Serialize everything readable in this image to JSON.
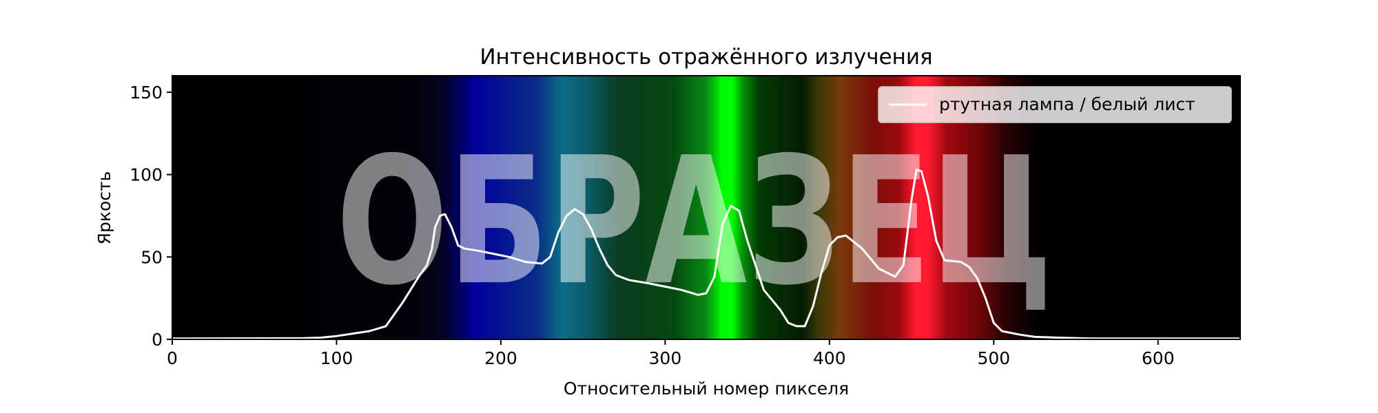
{
  "watermark": "ОБРАЗЕЦ",
  "chart_data": {
    "type": "line",
    "title": "Интенсивность отражённого излучения",
    "xlabel": "Относительный номер пикселя",
    "ylabel": "Яркость",
    "xlim": [
      0,
      650
    ],
    "ylim": [
      0,
      160
    ],
    "xticks": [
      0,
      100,
      200,
      300,
      400,
      500,
      600
    ],
    "yticks": [
      0,
      50,
      100,
      150
    ],
    "grid": false,
    "legend_position": "top-right",
    "background": "mercury lamp spectrum image (black → violet → blue → cyan → green → olive → red → black)",
    "colors": {
      "line": "#ffffff",
      "frame": "#000000"
    },
    "series": [
      {
        "name": "ртутная лампа / белый лист",
        "x": [
          0,
          80,
          90,
          100,
          110,
          120,
          130,
          135,
          140,
          145,
          150,
          155,
          158,
          160,
          163,
          166,
          170,
          174,
          178,
          185,
          195,
          205,
          215,
          225,
          230,
          235,
          240,
          245,
          250,
          255,
          260,
          265,
          270,
          278,
          290,
          300,
          310,
          320,
          325,
          330,
          335,
          340,
          345,
          350,
          360,
          370,
          375,
          380,
          385,
          390,
          395,
          400,
          405,
          410,
          420,
          430,
          440,
          445,
          450,
          453,
          456,
          460,
          465,
          470,
          480,
          485,
          490,
          495,
          500,
          505,
          515,
          525,
          540,
          560,
          650
        ],
        "y": [
          0.5,
          0.7,
          1,
          2,
          3.5,
          5,
          8,
          15,
          22,
          30,
          38,
          45,
          55,
          68,
          75,
          76,
          68,
          57,
          55,
          54,
          52,
          50,
          47,
          46,
          50,
          65,
          75,
          79,
          76,
          67,
          55,
          45,
          39,
          36,
          34,
          32,
          30,
          27,
          28,
          38,
          70,
          81,
          78,
          60,
          30,
          18,
          10,
          8,
          8,
          20,
          40,
          57,
          62,
          63,
          55,
          43,
          38,
          45,
          85,
          103,
          102,
          87,
          60,
          48,
          47,
          44,
          37,
          25,
          10,
          5,
          3,
          1.5,
          1,
          0.5,
          0.5
        ]
      }
    ]
  }
}
